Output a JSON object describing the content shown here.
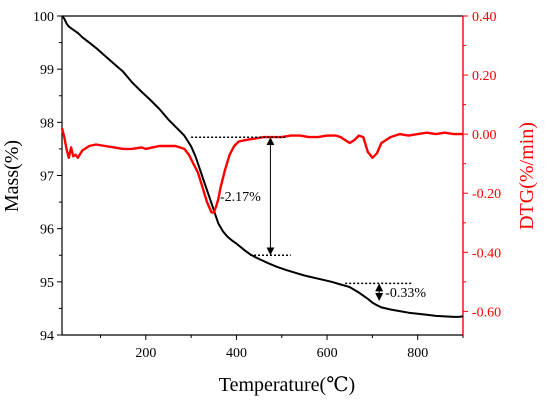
{
  "chart_data": {
    "type": "line",
    "title": "",
    "xlabel": "Temperature(℃)",
    "ylabel": "Mass(%)",
    "y2label": "DTG(%/min)",
    "xlim": [
      15,
      900
    ],
    "ylim": [
      94,
      100
    ],
    "y2lim": [
      -0.68,
      0.4
    ],
    "x_ticks": [
      200,
      400,
      600,
      800
    ],
    "x_tick_labels": [
      "200",
      "400",
      "600",
      "800"
    ],
    "y_ticks": [
      94,
      95,
      96,
      97,
      98,
      99,
      100
    ],
    "y_tick_labels": [
      "94",
      "95",
      "96",
      "97",
      "98",
      "99",
      "100"
    ],
    "y2_ticks": [
      0.4,
      0.2,
      0.0,
      -0.2,
      -0.4,
      -0.6
    ],
    "y2_tick_labels": [
      "0.40",
      "0.20",
      "0.00",
      "-0.20",
      "-0.40",
      "-0.60"
    ],
    "grid": false,
    "colors": {
      "mass": "#000000",
      "dtg": "#ff0000"
    },
    "series": [
      {
        "axis": "left",
        "color": "#000000",
        "x": [
          15,
          20,
          25,
          30,
          40,
          50,
          60,
          75,
          90,
          110,
          130,
          150,
          170,
          190,
          210,
          230,
          250,
          270,
          285,
          300,
          310,
          320,
          330,
          340,
          350,
          360,
          370,
          380,
          390,
          400,
          410,
          420,
          430,
          440,
          450,
          470,
          490,
          510,
          530,
          550,
          570,
          590,
          610,
          630,
          650,
          670,
          680,
          690,
          700,
          710,
          720,
          740,
          760,
          780,
          800,
          820,
          840,
          860,
          880,
          890,
          900
        ],
        "values": [
          100.0,
          99.95,
          99.86,
          99.8,
          99.74,
          99.68,
          99.6,
          99.5,
          99.4,
          99.25,
          99.1,
          98.95,
          98.75,
          98.58,
          98.42,
          98.25,
          98.05,
          97.88,
          97.75,
          97.55,
          97.35,
          97.1,
          96.85,
          96.6,
          96.35,
          96.1,
          95.95,
          95.85,
          95.78,
          95.72,
          95.65,
          95.58,
          95.52,
          95.47,
          95.43,
          95.35,
          95.28,
          95.22,
          95.17,
          95.12,
          95.08,
          95.04,
          95.0,
          94.95,
          94.9,
          94.8,
          94.74,
          94.68,
          94.61,
          94.56,
          94.52,
          94.48,
          94.45,
          94.42,
          94.4,
          94.38,
          94.36,
          94.35,
          94.34,
          94.34,
          94.35
        ]
      },
      {
        "axis": "right",
        "color": "#ff0000",
        "x": [
          15,
          20,
          25,
          30,
          35,
          40,
          45,
          50,
          60,
          75,
          90,
          110,
          130,
          150,
          170,
          190,
          200,
          215,
          230,
          250,
          265,
          275,
          285,
          295,
          305,
          315,
          325,
          335,
          345,
          350,
          355,
          360,
          365,
          375,
          385,
          395,
          405,
          420,
          440,
          460,
          480,
          500,
          520,
          540,
          560,
          580,
          600,
          620,
          630,
          640,
          650,
          660,
          670,
          680,
          690,
          700,
          710,
          720,
          740,
          760,
          780,
          800,
          820,
          840,
          860,
          880,
          900
        ],
        "values": [
          0.02,
          -0.01,
          -0.05,
          -0.08,
          -0.045,
          -0.075,
          -0.07,
          -0.08,
          -0.055,
          -0.04,
          -0.035,
          -0.04,
          -0.045,
          -0.05,
          -0.05,
          -0.045,
          -0.05,
          -0.045,
          -0.04,
          -0.04,
          -0.04,
          -0.045,
          -0.05,
          -0.07,
          -0.1,
          -0.13,
          -0.18,
          -0.23,
          -0.265,
          -0.265,
          -0.245,
          -0.22,
          -0.18,
          -0.12,
          -0.07,
          -0.04,
          -0.025,
          -0.02,
          -0.015,
          -0.01,
          -0.01,
          -0.01,
          -0.005,
          -0.005,
          -0.01,
          -0.01,
          -0.005,
          -0.005,
          -0.01,
          -0.02,
          -0.03,
          -0.02,
          -0.005,
          -0.01,
          -0.06,
          -0.08,
          -0.065,
          -0.03,
          -0.01,
          0.0,
          -0.005,
          0.0,
          0.005,
          0.0,
          0.005,
          0.0,
          0.0
        ]
      }
    ],
    "annotations": [
      {
        "text": "-2.17%",
        "axis": "left",
        "x_from": 300,
        "x_to": 510,
        "x_low_from": 430,
        "x_low_to": 520,
        "y_high": 97.72,
        "y_low": 95.5,
        "arrow_x": 475
      },
      {
        "text": "-0.33%",
        "axis": "left",
        "x_from": 640,
        "x_to": 790,
        "y_high": 94.97,
        "y_low": 94.64,
        "arrow_x": 715
      }
    ]
  }
}
